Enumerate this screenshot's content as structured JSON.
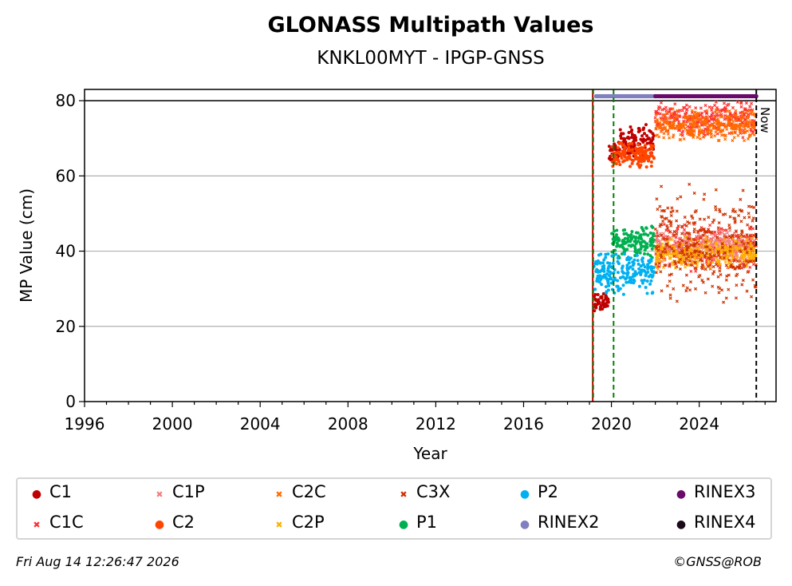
{
  "chart_data": {
    "type": "scatter",
    "title": "GLONASS Multipath Values",
    "subtitle": "KNKL00MYT - IPGP-GNSS",
    "xlabel": "Year",
    "ylabel": "MP Value (cm)",
    "xlim": [
      1996,
      2027.5
    ],
    "ylim": [
      0,
      83
    ],
    "xticks": [
      "1996",
      "2000",
      "2004",
      "2008",
      "2012",
      "2016",
      "2020",
      "2024"
    ],
    "yticks": [
      "0",
      "20",
      "40",
      "60",
      "80"
    ],
    "grid": "horizontal",
    "reference_line_y": 80,
    "now_label": "Now",
    "now_x": 2026.6,
    "vlines": [
      {
        "x": 2019.15,
        "color": "#c00000",
        "style": "solid"
      },
      {
        "x": 2019.17,
        "color": "#008000",
        "style": "dashed"
      },
      {
        "x": 2020.1,
        "color": "#008000",
        "style": "dashed"
      },
      {
        "x": 2026.6,
        "color": "#000000",
        "style": "dashed"
      }
    ],
    "series": [
      {
        "name": "C1",
        "marker": "dot",
        "color": "#c00000",
        "segments": [
          [
            2019.2,
            2019.9,
            24,
            29
          ],
          [
            2019.9,
            2020.4,
            63,
            70
          ],
          [
            2020.4,
            2021.95,
            64,
            74
          ]
        ]
      },
      {
        "name": "C1C",
        "marker": "x",
        "color": "#ff3030",
        "segments": [
          [
            2022.0,
            2026.6,
            70,
            80
          ],
          [
            2022.0,
            2026.6,
            34,
            48
          ]
        ]
      },
      {
        "name": "C1P",
        "marker": "x",
        "color": "#f08080",
        "segments": [
          [
            2022.0,
            2026.6,
            36,
            46
          ]
        ]
      },
      {
        "name": "C2",
        "marker": "dot",
        "color": "#ff4500",
        "segments": [
          [
            2020.0,
            2021.95,
            62,
            69
          ]
        ]
      },
      {
        "name": "C2C",
        "marker": "x",
        "color": "#ff6a00",
        "segments": [
          [
            2022.0,
            2026.6,
            69,
            78
          ]
        ]
      },
      {
        "name": "C2P",
        "marker": "x",
        "color": "#ffb000",
        "segments": [
          [
            2022.0,
            2026.6,
            35,
            44
          ]
        ]
      },
      {
        "name": "C3X",
        "marker": "x",
        "color": "#cc3300",
        "segments": [
          [
            2022.0,
            2026.6,
            25,
            58
          ]
        ]
      },
      {
        "name": "P1",
        "marker": "dot",
        "color": "#00b050",
        "segments": [
          [
            2020.0,
            2021.95,
            38,
            47
          ]
        ]
      },
      {
        "name": "P2",
        "marker": "dot",
        "color": "#00b0f0",
        "segments": [
          [
            2019.2,
            2021.95,
            28,
            40
          ]
        ]
      },
      {
        "name": "RINEX2",
        "marker": "dot",
        "color": "#8080c0",
        "segments": [
          [
            2019.3,
            2022.0,
            81.2,
            81.2
          ]
        ]
      },
      {
        "name": "RINEX3",
        "marker": "dot",
        "color": "#6a0a6a",
        "segments": [
          [
            2022.0,
            2026.6,
            81.2,
            81.2
          ]
        ]
      },
      {
        "name": "RINEX4",
        "marker": "dot",
        "color": "#1a0a1a",
        "segments": []
      }
    ]
  },
  "legend": [
    {
      "label": "C1",
      "symbol": "●",
      "color": "#c00000"
    },
    {
      "label": "C1C",
      "symbol": "✖",
      "color": "#ff3030"
    },
    {
      "label": "C1P",
      "symbol": "✖",
      "color": "#f08080"
    },
    {
      "label": "C2",
      "symbol": "●",
      "color": "#ff4500"
    },
    {
      "label": "C2C",
      "symbol": "✖",
      "color": "#ff6a00"
    },
    {
      "label": "C2P",
      "symbol": "✖",
      "color": "#ffb000"
    },
    {
      "label": "C3X",
      "symbol": "✖",
      "color": "#cc3300"
    },
    {
      "label": "P1",
      "symbol": "●",
      "color": "#00b050"
    },
    {
      "label": "P2",
      "symbol": "●",
      "color": "#00b0f0"
    },
    {
      "label": "RINEX2",
      "symbol": "●",
      "color": "#8080c0"
    },
    {
      "label": "RINEX3",
      "symbol": "●",
      "color": "#6a0a6a"
    },
    {
      "label": "RINEX4",
      "symbol": "●",
      "color": "#1a0a1a"
    }
  ],
  "footer": {
    "timestamp": "Fri Aug 14 12:26:47 2026",
    "copyright": "©GNSS@ROB"
  }
}
